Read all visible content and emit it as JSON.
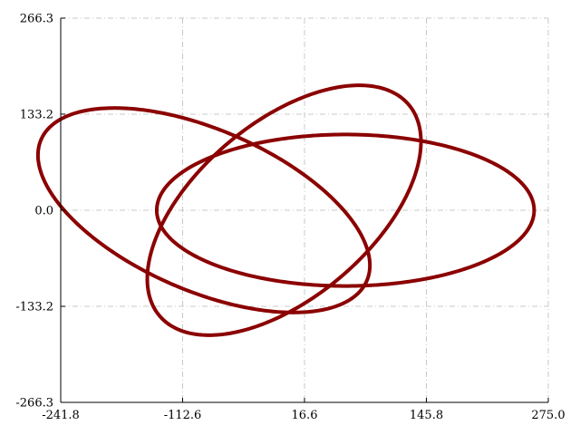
{
  "chart_data": {
    "type": "line",
    "title": "",
    "xlabel": "",
    "ylabel": "",
    "xlim": [
      -241.8,
      275.0
    ],
    "ylim": [
      -266.3,
      266.3
    ],
    "x_ticks": [
      -241.8,
      -112.6,
      16.6,
      145.8,
      275.0
    ],
    "y_ticks": [
      -266.3,
      -133.2,
      0.0,
      133.2,
      266.3
    ],
    "x_tick_labels": [
      "-241.8",
      "-112.6",
      "16.6",
      "145.8",
      "275.0"
    ],
    "y_tick_labels": [
      "-266.3",
      "-133.2",
      "0.0",
      "133.2",
      "266.3"
    ],
    "grid": true,
    "color": "#8b0000",
    "curves": [
      {
        "center": [
          60.0,
          0.0
        ],
        "semi_major": 200.0,
        "semi_minor": 105.0,
        "rotation_deg": 0
      },
      {
        "center": [
          -90.0,
          0.0
        ],
        "semi_major": 200.0,
        "semi_minor": 105.0,
        "rotation_deg": -34
      },
      {
        "center": [
          -5.0,
          0.0
        ],
        "semi_major": 200.0,
        "semi_minor": 105.0,
        "rotation_deg": 54
      }
    ]
  }
}
